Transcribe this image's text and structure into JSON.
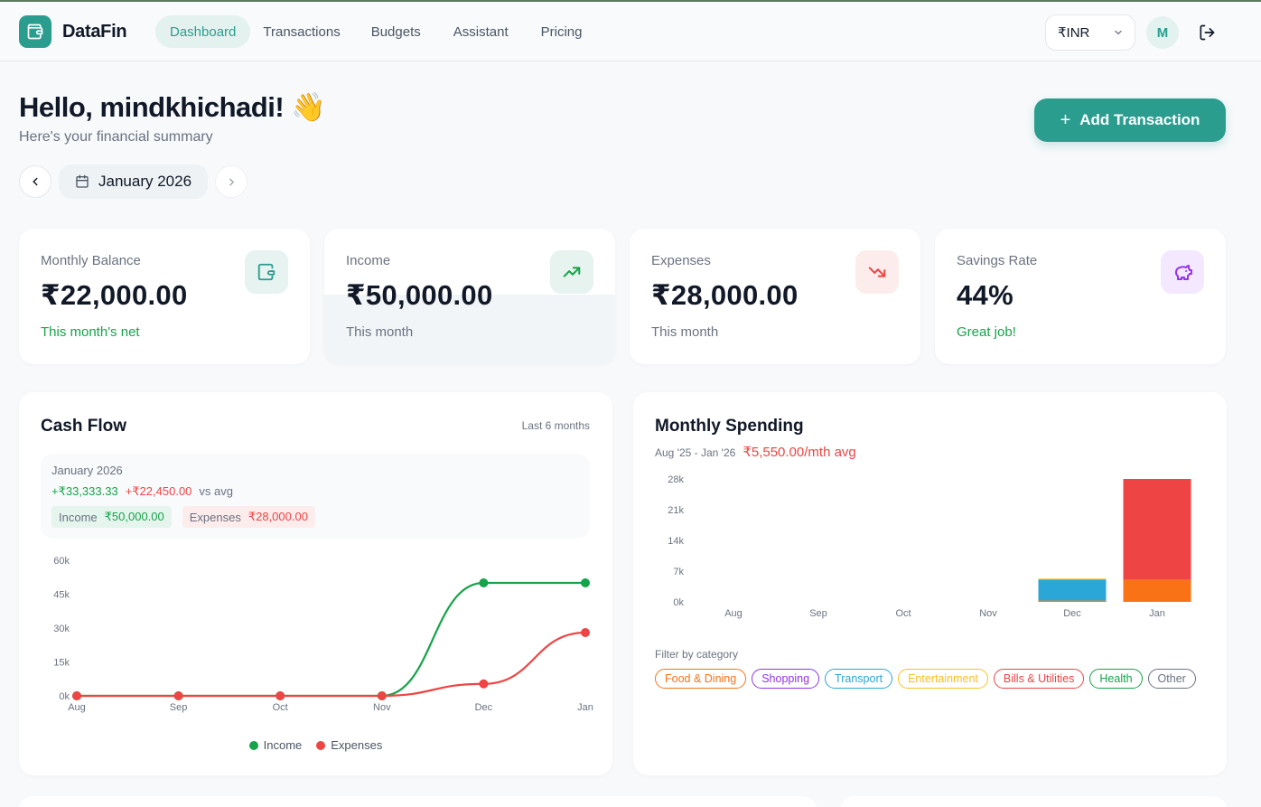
{
  "app": {
    "name": "DataFin",
    "brand_color": "#2a9d8f"
  },
  "nav": {
    "items": [
      {
        "label": "Dashboard",
        "active": true
      },
      {
        "label": "Transactions",
        "active": false
      },
      {
        "label": "Budgets",
        "active": false
      },
      {
        "label": "Assistant",
        "active": false
      },
      {
        "label": "Pricing",
        "active": false
      }
    ],
    "currency": "₹INR",
    "currency_icon": "chevron-down-icon",
    "avatar_initial": "M",
    "logout_icon": "logout-icon"
  },
  "header": {
    "greeting": "Hello, mindkhichadi! 👋",
    "subtitle": "Here's your financial summary",
    "add_button": "Add Transaction",
    "month": "January 2026"
  },
  "stats": [
    {
      "label": "Monthly Balance",
      "value": "₹22,000.00",
      "note": "This month's net",
      "note_color": "#16a34a",
      "icon": "wallet-icon",
      "icon_bg": "#e6f3f0",
      "icon_color": "#2a9d8f"
    },
    {
      "label": "Income",
      "value": "₹50,000.00",
      "note": "This month",
      "note_color": "#6b7280",
      "icon": "trending-up-icon",
      "icon_bg": "#e6f3ee",
      "icon_color": "#16a34a"
    },
    {
      "label": "Expenses",
      "value": "₹28,000.00",
      "note": "This month",
      "note_color": "#6b7280",
      "icon": "trending-down-icon",
      "icon_bg": "#fdecec",
      "icon_color": "#ef4444"
    },
    {
      "label": "Savings Rate",
      "value": "44%",
      "note": "Great job!",
      "note_color": "#16a34a",
      "icon": "piggy-bank-icon",
      "icon_bg": "#f3e8ff",
      "icon_color": "#9333ea"
    }
  ],
  "cashflow": {
    "title": "Cash Flow",
    "range": "Last 6 months",
    "summary": {
      "month": "January 2026",
      "income_delta": "+₹33,333.33",
      "expense_delta": "+₹22,450.00",
      "delta_suffix": "vs avg",
      "income_label": "Income",
      "income_value": "₹50,000.00",
      "expense_label": "Expenses",
      "expense_value": "₹28,000.00"
    },
    "legend": [
      "Income",
      "Expenses"
    ]
  },
  "spending": {
    "title": "Monthly Spending",
    "range": "Aug '25 - Jan '26",
    "avg": "₹5,550.00/mth avg",
    "filter_label": "Filter by category",
    "categories": [
      {
        "label": "Food & Dining",
        "color": "#f97316"
      },
      {
        "label": "Shopping",
        "color": "#9333ea"
      },
      {
        "label": "Transport",
        "color": "#2aa7d6"
      },
      {
        "label": "Entertainment",
        "color": "#fbbf24"
      },
      {
        "label": "Bills & Utilities",
        "color": "#ef4444"
      },
      {
        "label": "Health",
        "color": "#16a34a"
      },
      {
        "label": "Other",
        "color": "#6b7280"
      }
    ]
  },
  "chart_data": [
    {
      "type": "line",
      "title": "Cash Flow",
      "x": [
        "Aug",
        "Sep",
        "Oct",
        "Nov",
        "Dec",
        "Jan"
      ],
      "series": [
        {
          "name": "Income",
          "color": "#16a34a",
          "values": [
            0,
            0,
            0,
            0,
            50000,
            50000
          ]
        },
        {
          "name": "Expenses",
          "color": "#ef4444",
          "values": [
            0,
            0,
            0,
            0,
            5300,
            28000
          ]
        }
      ],
      "yticks": [
        "0k",
        "15k",
        "30k",
        "45k",
        "60k"
      ],
      "ylim": [
        0,
        60000
      ],
      "legend_position": "bottom",
      "grid": false
    },
    {
      "type": "bar",
      "stacked": true,
      "title": "Monthly Spending",
      "categories": [
        "Aug",
        "Sep",
        "Oct",
        "Nov",
        "Dec",
        "Jan"
      ],
      "series": [
        {
          "name": "Food & Dining",
          "color": "#f97316",
          "values": [
            0,
            0,
            0,
            0,
            300,
            5000
          ]
        },
        {
          "name": "Transport",
          "color": "#2aa7d6",
          "values": [
            0,
            0,
            0,
            0,
            4800,
            0
          ]
        },
        {
          "name": "Entertainment",
          "color": "#fbbf24",
          "values": [
            0,
            0,
            0,
            0,
            200,
            0
          ]
        },
        {
          "name": "Bills & Utilities",
          "color": "#ef4444",
          "values": [
            0,
            0,
            0,
            0,
            0,
            23000
          ]
        }
      ],
      "yticks": [
        "0k",
        "7k",
        "14k",
        "21k",
        "28k"
      ],
      "ylim": [
        0,
        28000
      ],
      "grid": false
    }
  ]
}
